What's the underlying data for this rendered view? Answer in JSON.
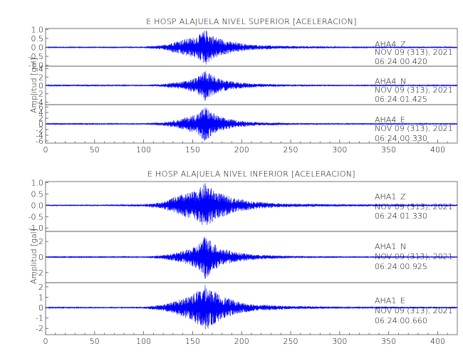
{
  "chart_data": [
    {
      "type": "line",
      "title": "E HOSP ALAJUELA NIVEL SUPERIOR [ACELERACION]",
      "xlabel": "",
      "ylabel": "Amplitud [gal]",
      "xlim": [
        0,
        420
      ],
      "x_ticks": [
        "0",
        "50",
        "100",
        "150",
        "200",
        "250",
        "300",
        "350",
        "400"
      ],
      "color": "#0000ff",
      "grid": false,
      "panels": [
        {
          "name": "AHA4 Z",
          "station": "AHA4",
          "component": "Z",
          "date": "NOV 09 (313), 2021",
          "time": "06:24:00.420",
          "ylim": [
            -1.05,
            1.05
          ],
          "y_ticks": [
            "1.0",
            "0.5",
            "0.0",
            "-0.5",
            "-1.0"
          ],
          "envelope": [
            [
              0,
              0.03
            ],
            [
              50,
              0.03
            ],
            [
              100,
              0.04
            ],
            [
              120,
              0.12
            ],
            [
              130,
              0.3
            ],
            [
              140,
              0.45
            ],
            [
              150,
              0.55
            ],
            [
              158,
              0.75
            ],
            [
              163,
              1.0
            ],
            [
              168,
              0.75
            ],
            [
              175,
              0.55
            ],
            [
              190,
              0.3
            ],
            [
              210,
              0.15
            ],
            [
              240,
              0.08
            ],
            [
              300,
              0.05
            ],
            [
              420,
              0.04
            ]
          ]
        },
        {
          "name": "AHA4 N",
          "station": "AHA4",
          "component": "N",
          "date": "NOV 09 (313), 2021",
          "time": "06:24:01.425",
          "ylim": [
            -4.6,
            4.6
          ],
          "y_ticks": [
            "4",
            "2",
            "0",
            "-2",
            "-4"
          ],
          "envelope": [
            [
              0,
              0.1
            ],
            [
              50,
              0.1
            ],
            [
              100,
              0.15
            ],
            [
              120,
              0.35
            ],
            [
              135,
              0.8
            ],
            [
              145,
              1.2
            ],
            [
              155,
              2.0
            ],
            [
              163,
              3.8
            ],
            [
              168,
              2.8
            ],
            [
              178,
              1.5
            ],
            [
              195,
              0.8
            ],
            [
              215,
              0.4
            ],
            [
              250,
              0.25
            ],
            [
              300,
              0.15
            ],
            [
              420,
              0.12
            ]
          ]
        },
        {
          "name": "AHA4 E",
          "station": "AHA4",
          "component": "E",
          "date": "NOV 09 (313), 2021",
          "time": "06:24:00.330",
          "ylim": [
            -6.8,
            6.8
          ],
          "y_ticks": [
            "6",
            "4",
            "2",
            "0",
            "-2",
            "-4",
            "-6"
          ],
          "envelope": [
            [
              0,
              0.15
            ],
            [
              50,
              0.15
            ],
            [
              100,
              0.25
            ],
            [
              120,
              0.6
            ],
            [
              135,
              1.5
            ],
            [
              145,
              2.5
            ],
            [
              155,
              3.8
            ],
            [
              163,
              6.3
            ],
            [
              168,
              4.5
            ],
            [
              178,
              2.5
            ],
            [
              195,
              1.2
            ],
            [
              215,
              0.6
            ],
            [
              250,
              0.35
            ],
            [
              300,
              0.25
            ],
            [
              420,
              0.2
            ]
          ]
        }
      ]
    },
    {
      "type": "line",
      "title": "E HOSP ALAJUELA NIVEL INFERIOR [ACELERACION]",
      "xlabel": "",
      "ylabel": "Amplitud [gal]",
      "xlim": [
        0,
        420
      ],
      "x_ticks": [
        "0",
        "50",
        "100",
        "150",
        "200",
        "250",
        "300",
        "350",
        "400"
      ],
      "color": "#0000ff",
      "grid": false,
      "panels": [
        {
          "name": "AHA1 Z",
          "station": "AHA1",
          "component": "Z",
          "date": "NOV 09 (313), 2021",
          "time": "06:24:01.330",
          "ylim": [
            -1.15,
            1.05
          ],
          "y_ticks": [
            "1.0",
            "0.5",
            "0.0",
            "-0.5",
            "-1.0"
          ],
          "envelope": [
            [
              0,
              0.03
            ],
            [
              50,
              0.03
            ],
            [
              100,
              0.05
            ],
            [
              120,
              0.15
            ],
            [
              130,
              0.35
            ],
            [
              140,
              0.5
            ],
            [
              150,
              0.6
            ],
            [
              158,
              0.8
            ],
            [
              163,
              1.0
            ],
            [
              168,
              0.8
            ],
            [
              175,
              0.6
            ],
            [
              190,
              0.35
            ],
            [
              210,
              0.18
            ],
            [
              240,
              0.08
            ],
            [
              300,
              0.05
            ],
            [
              420,
              0.04
            ]
          ]
        },
        {
          "name": "AHA1 N",
          "station": "AHA1",
          "component": "N",
          "date": "NOV 09 (313), 2021",
          "time": "06:24:00.925",
          "ylim": [
            -3.3,
            3.3
          ],
          "y_ticks": [
            "2",
            "0",
            "-2"
          ],
          "envelope": [
            [
              0,
              0.05
            ],
            [
              50,
              0.05
            ],
            [
              100,
              0.08
            ],
            [
              120,
              0.25
            ],
            [
              135,
              0.6
            ],
            [
              145,
              1.0
            ],
            [
              155,
              1.5
            ],
            [
              163,
              2.9
            ],
            [
              168,
              2.2
            ],
            [
              178,
              1.2
            ],
            [
              195,
              0.6
            ],
            [
              215,
              0.3
            ],
            [
              250,
              0.15
            ],
            [
              300,
              0.1
            ],
            [
              420,
              0.08
            ]
          ]
        },
        {
          "name": "AHA1 E",
          "station": "AHA1",
          "component": "E",
          "date": "NOV 09 (313), 2021",
          "time": "06:24:00.660",
          "ylim": [
            -2.6,
            2.4
          ],
          "y_ticks": [
            "2",
            "1",
            "0",
            "-1",
            "-2"
          ],
          "envelope": [
            [
              0,
              0.05
            ],
            [
              50,
              0.05
            ],
            [
              100,
              0.08
            ],
            [
              120,
              0.3
            ],
            [
              135,
              0.7
            ],
            [
              145,
              1.1
            ],
            [
              155,
              1.6
            ],
            [
              163,
              2.2
            ],
            [
              168,
              1.9
            ],
            [
              178,
              1.2
            ],
            [
              195,
              0.6
            ],
            [
              215,
              0.3
            ],
            [
              250,
              0.15
            ],
            [
              300,
              0.1
            ],
            [
              420,
              0.08
            ]
          ]
        }
      ]
    }
  ]
}
